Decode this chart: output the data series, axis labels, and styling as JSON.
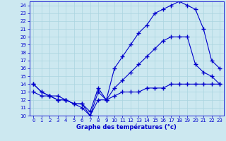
{
  "line1_x": [
    0,
    1,
    2,
    3,
    4,
    5,
    6,
    7,
    8,
    9,
    10,
    11,
    12,
    13,
    14,
    15,
    16,
    17,
    18,
    19,
    20,
    21,
    22,
    23
  ],
  "line1_y": [
    13,
    12.5,
    12.5,
    12.5,
    12,
    11.5,
    11.5,
    10,
    12,
    12,
    12.5,
    13,
    13,
    13,
    13.5,
    13.5,
    13.5,
    14,
    14,
    14,
    14,
    14,
    14,
    14
  ],
  "line2_x": [
    0,
    1,
    2,
    3,
    4,
    5,
    6,
    7,
    8,
    9,
    10,
    11,
    12,
    13,
    14,
    15,
    16,
    17,
    18,
    19,
    20,
    21,
    22,
    23
  ],
  "line2_y": [
    14,
    13,
    12.5,
    12,
    12,
    11.5,
    11.5,
    10.5,
    13.5,
    12,
    16,
    17.5,
    19,
    20.5,
    21.5,
    23,
    23.5,
    24,
    24.5,
    24,
    23.5,
    21,
    17,
    16
  ],
  "line3_x": [
    0,
    1,
    2,
    3,
    4,
    5,
    6,
    7,
    8,
    9,
    10,
    11,
    12,
    13,
    14,
    15,
    16,
    17,
    18,
    19,
    20,
    21,
    22,
    23
  ],
  "line3_y": [
    14,
    13,
    12.5,
    12,
    12,
    11.5,
    11,
    10,
    13,
    12,
    13.5,
    14.5,
    15.5,
    16.5,
    17.5,
    18.5,
    19.5,
    20,
    20,
    20,
    16.5,
    15.5,
    15,
    14
  ],
  "line_color": "#0000cc",
  "bg_color": "#cce8f0",
  "grid_color": "#aad4e0",
  "xlabel": "Graphe des températures (°c)",
  "xlim": [
    -0.5,
    23.5
  ],
  "ylim": [
    10,
    24.5
  ],
  "xticks": [
    0,
    1,
    2,
    3,
    4,
    5,
    6,
    7,
    8,
    9,
    10,
    11,
    12,
    13,
    14,
    15,
    16,
    17,
    18,
    19,
    20,
    21,
    22,
    23
  ],
  "yticks": [
    10,
    11,
    12,
    13,
    14,
    15,
    16,
    17,
    18,
    19,
    20,
    21,
    22,
    23,
    24
  ]
}
